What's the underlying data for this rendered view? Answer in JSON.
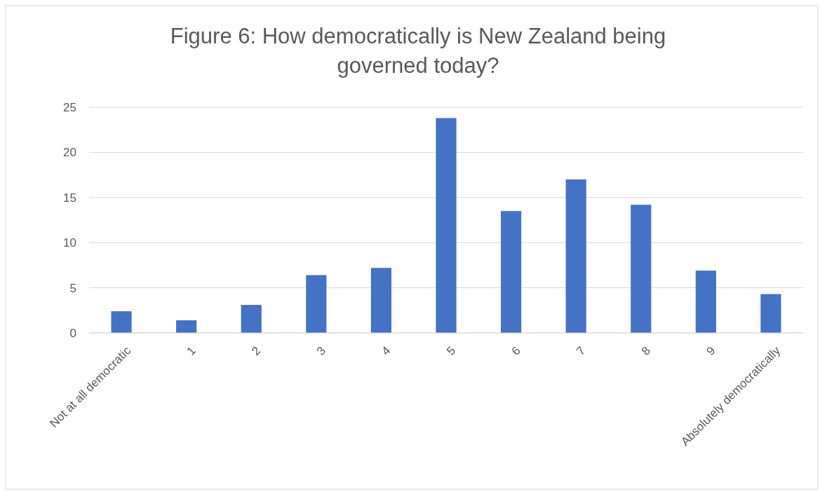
{
  "chart_data": {
    "type": "bar",
    "title": "Figure 6: How democratically is New Zealand being governed today?",
    "categories": [
      "Not at all democratic",
      "1",
      "2",
      "3",
      "4",
      "5",
      "6",
      "7",
      "8",
      "9",
      "Absolutely democratically"
    ],
    "values": [
      2.4,
      1.4,
      3.1,
      6.4,
      7.2,
      23.8,
      13.5,
      17.0,
      14.2,
      6.9,
      4.3
    ],
    "color": "#4472c4",
    "ylim": [
      0,
      25
    ],
    "yticks": [
      0,
      5,
      10,
      15,
      20,
      25
    ],
    "grid": "y"
  }
}
